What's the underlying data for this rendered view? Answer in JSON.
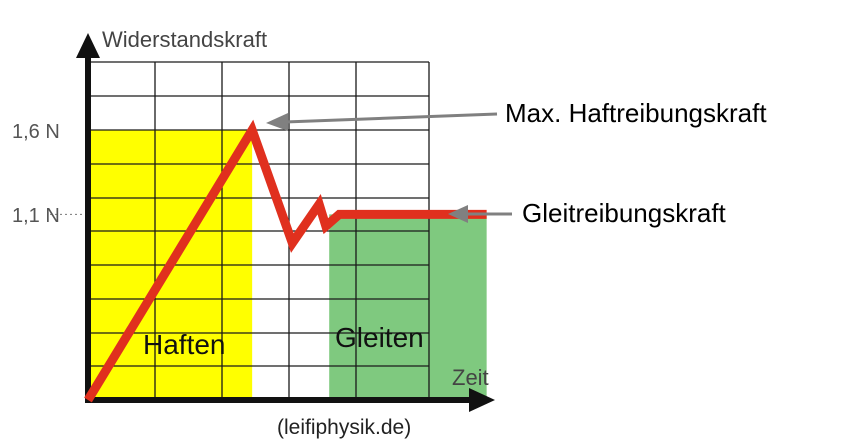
{
  "chart_data": {
    "type": "line",
    "ylabel": "Widerstandskraft",
    "xlabel": "Zeit",
    "y_ticks": [
      {
        "label": "1,6 N",
        "value": 1.6
      },
      {
        "label": "1,1 N",
        "value": 1.1
      }
    ],
    "grid": true,
    "series": [
      {
        "color": "#e0301e",
        "points": [
          [
            0,
            0
          ],
          [
            2.45,
            1.6
          ],
          [
            3.05,
            0.93
          ],
          [
            3.45,
            1.16
          ],
          [
            3.55,
            1.03
          ],
          [
            3.75,
            1.1
          ],
          [
            5.95,
            1.1
          ]
        ]
      }
    ],
    "regions": [
      {
        "label": "Haften",
        "x_from": 0,
        "x_to": 2.45,
        "y_to": 1.6,
        "color": "#ffff00"
      },
      {
        "label": "Gleiten",
        "x_from": 3.6,
        "x_to": 5.95,
        "y_to": 1.1,
        "color": "#7fc97f"
      }
    ],
    "annotations": [
      {
        "text": "Max. Haftreibungskraft",
        "target": "peak"
      },
      {
        "text": "Gleitreibungskraft",
        "target": "plateau"
      }
    ],
    "source": "(leifiphysik.de)"
  },
  "colors": {
    "axis": "#111111",
    "grid": "#1a1a1a",
    "arrow": "#808080"
  }
}
